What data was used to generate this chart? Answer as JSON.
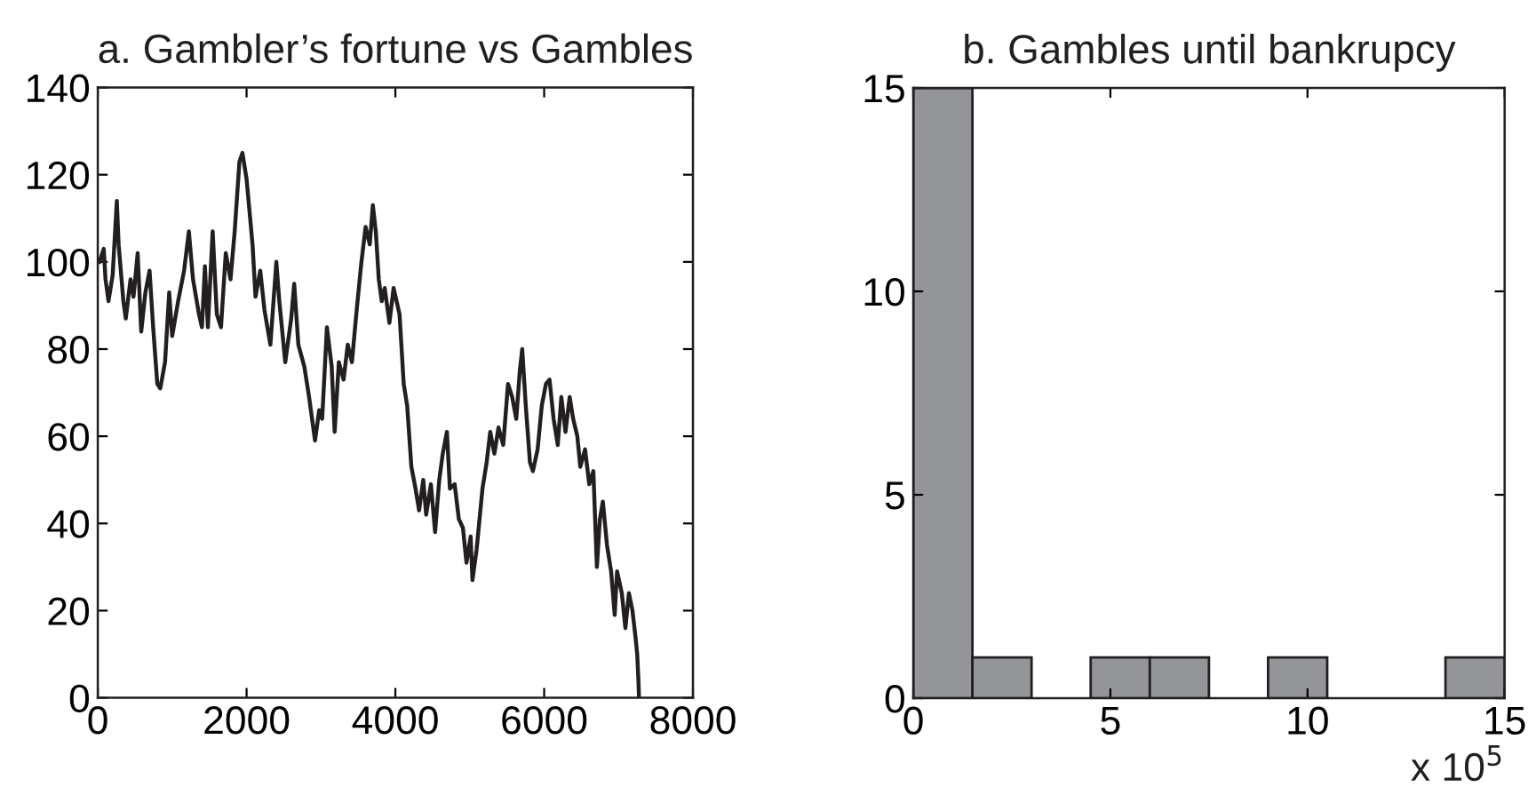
{
  "chart_data": [
    {
      "type": "line",
      "title": "a. Gambler’s fortune vs Gambles",
      "xlim": [
        0,
        8000
      ],
      "ylim": [
        0,
        140
      ],
      "xticks": [
        0,
        2000,
        4000,
        6000,
        8000
      ],
      "yticks": [
        0,
        20,
        40,
        60,
        80,
        100,
        120,
        140
      ],
      "series": [
        {
          "color": "#231f20",
          "line_style": "solid",
          "marker": "none",
          "x": [
            24,
            80,
            104,
            144,
            200,
            256,
            280,
            344,
            376,
            440,
            480,
            536,
            584,
            640,
            696,
            744,
            800,
            840,
            904,
            960,
            1000,
            1080,
            1160,
            1224,
            1280,
            1360,
            1400,
            1440,
            1480,
            1544,
            1600,
            1656,
            1720,
            1784,
            1840,
            1904,
            1944,
            2000,
            2080,
            2120,
            2184,
            2240,
            2320,
            2400,
            2440,
            2520,
            2600,
            2640,
            2696,
            2776,
            2840,
            2920,
            2976,
            3016,
            3080,
            3144,
            3184,
            3240,
            3304,
            3360,
            3416,
            3480,
            3544,
            3600,
            3656,
            3697,
            3737,
            3777,
            3817,
            3857,
            3920,
            3976,
            4056,
            4112,
            4159,
            4215,
            4271,
            4319,
            4375,
            4414,
            4478,
            4534,
            4590,
            4637,
            4693,
            4733,
            4797,
            4853,
            4908,
            4956,
            5012,
            5036,
            5092,
            5171,
            5227,
            5275,
            5331,
            5386,
            5450,
            5514,
            5570,
            5625,
            5673,
            5705,
            5753,
            5809,
            5849,
            5912,
            5968,
            6024,
            6072,
            6127,
            6183,
            6231,
            6287,
            6343,
            6390,
            6446,
            6486,
            6550,
            6606,
            6661,
            6709,
            6749,
            6789,
            6845,
            6900,
            6948,
            6980,
            7044,
            7092,
            7139,
            7187,
            7227,
            7251,
            7267,
            7275
          ],
          "values": [
            100,
            103,
            96,
            91,
            97,
            114,
            104,
            91,
            87,
            96,
            92,
            102,
            84,
            93,
            98,
            85,
            72,
            71,
            77,
            93,
            83,
            91,
            98,
            107,
            96,
            88,
            85,
            99,
            85,
            107,
            88,
            85,
            102,
            96,
            107,
            123,
            125,
            119,
            104,
            92,
            98,
            89,
            81,
            100,
            91,
            77,
            87,
            95,
            81,
            76,
            69,
            59,
            66,
            64,
            85,
            76,
            61,
            77,
            73,
            81,
            77,
            89,
            100,
            108,
            104,
            113,
            107,
            96,
            91,
            94,
            86,
            94,
            88,
            72,
            67,
            53,
            48,
            43,
            50,
            42,
            49,
            38,
            50,
            56,
            61,
            48,
            49,
            41,
            39,
            31,
            37,
            27,
            34,
            48,
            54,
            61,
            56,
            62,
            58,
            72,
            69,
            64,
            75,
            80,
            67,
            54,
            52,
            57,
            67,
            72,
            73,
            64,
            58,
            69,
            61,
            69,
            64,
            60,
            53,
            57,
            49,
            52,
            30,
            41,
            45,
            35,
            29,
            19,
            29,
            24,
            16,
            24,
            20,
            14,
            10,
            4,
            0
          ]
        }
      ]
    },
    {
      "type": "histogram",
      "title": "b. Gambles until bankrupcy",
      "xlabel": "x 10$^{5}$",
      "bins": [
        0,
        1.5,
        3,
        4.5,
        6,
        7.5,
        9,
        10.5,
        12,
        13.5,
        15
      ],
      "values": [
        15,
        1,
        0,
        1,
        1,
        0,
        1,
        0,
        0,
        1
      ],
      "color": "#939598",
      "xlim": [
        0,
        15
      ],
      "ylim": [
        0,
        15
      ],
      "xticks": [
        0,
        5,
        10,
        15
      ],
      "yticks": [
        0,
        5,
        10,
        15
      ]
    }
  ]
}
